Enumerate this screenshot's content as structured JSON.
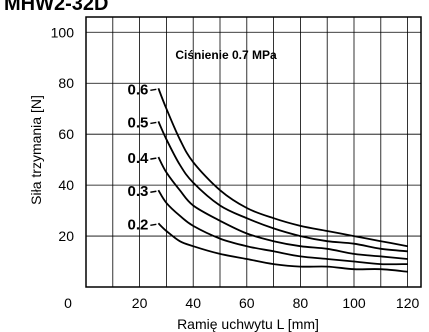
{
  "header_text": "MHW2-32D",
  "chart_data": {
    "type": "line",
    "title": "Ciśnienie 0.7 MPa",
    "xlabel": "Ramię uchwytu L [mm]",
    "ylabel": "Siła trzymania [N]",
    "xlim": [
      0,
      125
    ],
    "ylim": [
      0,
      106
    ],
    "xticks": [
      0,
      20,
      40,
      60,
      80,
      100,
      120
    ],
    "yticks": [
      20,
      40,
      60,
      80,
      100
    ],
    "grid": true,
    "series": [
      {
        "name": "0.6",
        "x": [
          27,
          30,
          35,
          40,
          50,
          60,
          70,
          80,
          90,
          100,
          110,
          120
        ],
        "y": [
          78,
          70,
          58,
          49,
          38,
          31,
          27,
          24,
          22,
          20,
          18,
          16
        ]
      },
      {
        "name": "0.5",
        "x": [
          27,
          30,
          35,
          40,
          50,
          60,
          70,
          80,
          90,
          100,
          110,
          120
        ],
        "y": [
          65,
          58,
          48,
          41,
          32,
          27,
          23,
          20,
          18,
          17,
          15,
          14
        ]
      },
      {
        "name": "0.4",
        "x": [
          27,
          30,
          35,
          40,
          50,
          60,
          70,
          80,
          90,
          100,
          110,
          120
        ],
        "y": [
          51,
          45,
          38,
          32,
          26,
          21,
          18,
          16,
          15,
          13,
          12,
          11
        ]
      },
      {
        "name": "0.3",
        "x": [
          27,
          30,
          35,
          40,
          50,
          60,
          70,
          80,
          90,
          100,
          110,
          120
        ],
        "y": [
          38,
          33,
          28,
          24,
          19,
          16,
          14,
          12,
          11,
          10,
          9,
          9
        ]
      },
      {
        "name": "0.2",
        "x": [
          27,
          30,
          35,
          40,
          50,
          60,
          70,
          80,
          90,
          100,
          110,
          120
        ],
        "y": [
          25,
          22,
          18,
          16,
          13,
          11,
          9,
          8,
          8,
          7,
          7,
          6
        ]
      }
    ]
  }
}
